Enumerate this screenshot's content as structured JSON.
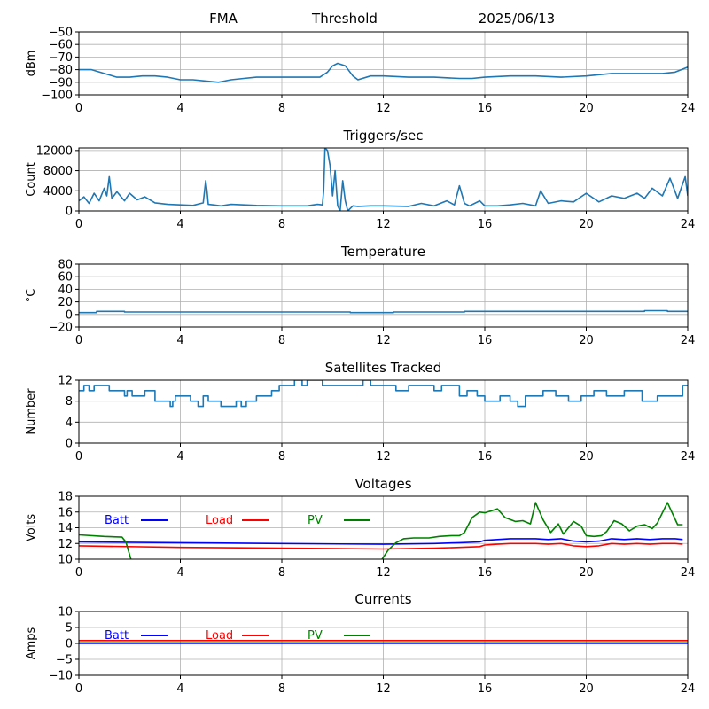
{
  "header": {
    "left": "FMA",
    "center": "Threshold",
    "right": "2025/06/13"
  },
  "colors": {
    "default": "#1f77b4",
    "batt": "#0000ff",
    "load": "#ff0000",
    "pv": "#008000"
  },
  "chart_data": [
    {
      "id": "signal",
      "type": "line",
      "title": "",
      "xlabel": "",
      "ylabel": "dBm",
      "xlim": [
        0,
        24
      ],
      "ylim": [
        -100,
        -50
      ],
      "xticks": [
        0,
        4,
        8,
        12,
        16,
        20,
        24
      ],
      "yticks": [
        -100,
        -90,
        -80,
        -70,
        -60,
        -50
      ],
      "ytick_labels": [
        "−100",
        "−90",
        "−80",
        "−70",
        "−60",
        "−50"
      ],
      "grid": true,
      "series": [
        {
          "color": "default",
          "x": [
            0,
            0.5,
            1,
            1.5,
            2,
            2.5,
            3,
            3.5,
            4,
            4.5,
            5,
            5.5,
            6,
            6.5,
            7,
            8,
            9,
            9.5,
            9.8,
            10,
            10.2,
            10.5,
            10.8,
            11,
            11.5,
            12,
            13,
            14,
            15,
            15.5,
            16,
            17,
            18,
            19,
            20,
            20.5,
            21,
            22,
            23,
            23.5,
            24
          ],
          "y": [
            -80,
            -80,
            -83,
            -86,
            -86,
            -85,
            -85,
            -86,
            -88,
            -88,
            -89,
            -90,
            -88,
            -87,
            -86,
            -86,
            -86,
            -86,
            -82,
            -77,
            -75,
            -77,
            -85,
            -88,
            -85,
            -85,
            -86,
            -86,
            -87,
            -87,
            -86,
            -85,
            -85,
            -86,
            -85,
            -84,
            -83,
            -83,
            -83,
            -82,
            -78
          ]
        }
      ]
    },
    {
      "id": "triggers",
      "type": "line",
      "title": "Triggers/sec",
      "xlabel": "",
      "ylabel": "Count",
      "xlim": [
        0,
        24
      ],
      "ylim": [
        0,
        12500
      ],
      "xticks": [
        0,
        4,
        8,
        12,
        16,
        20,
        24
      ],
      "yticks": [
        0,
        4000,
        8000,
        12000
      ],
      "ytick_labels": [
        "0",
        "4000",
        "8000",
        "12000"
      ],
      "grid": true,
      "series": [
        {
          "color": "default",
          "x": [
            0,
            0.2,
            0.4,
            0.6,
            0.8,
            1.0,
            1.1,
            1.2,
            1.3,
            1.5,
            1.8,
            2.0,
            2.3,
            2.6,
            3.0,
            3.5,
            4.0,
            4.5,
            4.9,
            5.0,
            5.05,
            5.1,
            5.3,
            5.6,
            6.0,
            7.0,
            8.0,
            9.0,
            9.4,
            9.6,
            9.65,
            9.7,
            9.8,
            9.9,
            10.0,
            10.1,
            10.2,
            10.3,
            10.4,
            10.5,
            10.6,
            10.8,
            11.0,
            11.5,
            12.0,
            13.0,
            13.5,
            14.0,
            14.5,
            14.8,
            15.0,
            15.2,
            15.4,
            15.8,
            16.0,
            16.5,
            17.0,
            17.5,
            18.0,
            18.2,
            18.5,
            19.0,
            19.5,
            20.0,
            20.5,
            21.0,
            21.5,
            22.0,
            22.3,
            22.6,
            23.0,
            23.3,
            23.6,
            23.9,
            24.0
          ],
          "y": [
            2000,
            2800,
            1500,
            3500,
            2000,
            4500,
            3000,
            6800,
            2500,
            3800,
            2000,
            3500,
            2200,
            2800,
            1600,
            1300,
            1200,
            1100,
            1600,
            6000,
            4000,
            1300,
            1200,
            1000,
            1300,
            1100,
            1000,
            1000,
            1300,
            1200,
            4000,
            12500,
            12000,
            9000,
            3000,
            8000,
            1000,
            0,
            6000,
            2000,
            0,
            1000,
            900,
            1000,
            1000,
            900,
            1500,
            1000,
            2000,
            1200,
            5000,
            1500,
            1000,
            2000,
            1000,
            1000,
            1200,
            1500,
            1000,
            4000,
            1500,
            2000,
            1800,
            3500,
            1800,
            3000,
            2500,
            3500,
            2500,
            4500,
            3000,
            6500,
            2500,
            6800,
            3000
          ]
        }
      ]
    },
    {
      "id": "temperature",
      "type": "line",
      "title": "Temperature",
      "xlabel": "",
      "ylabel": "°C",
      "xlim": [
        0,
        24
      ],
      "ylim": [
        -20,
        80
      ],
      "xticks": [
        0,
        4,
        8,
        12,
        16,
        20,
        24
      ],
      "yticks": [
        -20,
        0,
        20,
        40,
        60,
        80
      ],
      "ytick_labels": [
        "−20",
        "0",
        "20",
        "40",
        "60",
        "80"
      ],
      "grid": true,
      "series": [
        {
          "color": "default",
          "x": [
            0,
            0.7,
            0.7,
            1.8,
            1.8,
            10.7,
            10.7,
            12.4,
            12.4,
            15.2,
            15.2,
            22.3,
            22.3,
            23.2,
            23.2,
            24
          ],
          "y": [
            3,
            3,
            5,
            5,
            4,
            4,
            3,
            3,
            4,
            4,
            5,
            5,
            6,
            6,
            5,
            5
          ]
        }
      ]
    },
    {
      "id": "satellites",
      "type": "line",
      "title": "Satellites Tracked",
      "xlabel": "",
      "ylabel": "Number",
      "xlim": [
        0,
        24
      ],
      "ylim": [
        0,
        12
      ],
      "xticks": [
        0,
        4,
        8,
        12,
        16,
        20,
        24
      ],
      "yticks": [
        0,
        4,
        8,
        12
      ],
      "ytick_labels": [
        "0",
        "4",
        "8",
        "12"
      ],
      "grid": true,
      "series": [
        {
          "color": "default",
          "x": [
            0,
            0.2,
            0.2,
            0.4,
            0.4,
            0.6,
            0.6,
            1.2,
            1.2,
            1.8,
            1.8,
            1.9,
            1.9,
            2.1,
            2.1,
            2.6,
            2.6,
            3.0,
            3.0,
            3.6,
            3.6,
            3.7,
            3.7,
            3.8,
            3.8,
            4.4,
            4.4,
            4.7,
            4.7,
            4.9,
            4.9,
            5.1,
            5.1,
            5.6,
            5.6,
            6.2,
            6.2,
            6.4,
            6.4,
            6.6,
            6.6,
            7.0,
            7.0,
            7.6,
            7.6,
            7.9,
            7.9,
            8.5,
            8.5,
            8.8,
            8.8,
            9.0,
            9.0,
            9.6,
            9.6,
            11.2,
            11.2,
            11.5,
            11.5,
            12.5,
            12.5,
            13.0,
            13.0,
            14.0,
            14.0,
            14.3,
            14.3,
            15.0,
            15.0,
            15.3,
            15.3,
            15.7,
            15.7,
            16.0,
            16.0,
            16.6,
            16.6,
            17.0,
            17.0,
            17.3,
            17.3,
            17.6,
            17.6,
            18.3,
            18.3,
            18.8,
            18.8,
            19.3,
            19.3,
            19.8,
            19.8,
            20.3,
            20.3,
            20.8,
            20.8,
            21.5,
            21.5,
            22.2,
            22.2,
            22.8,
            22.8,
            23.8,
            23.8,
            24
          ],
          "y": [
            10,
            10,
            11,
            11,
            10,
            10,
            11,
            11,
            10,
            10,
            9,
            9,
            10,
            10,
            9,
            9,
            10,
            10,
            8,
            8,
            7,
            7,
            8,
            8,
            9,
            9,
            8,
            8,
            7,
            7,
            9,
            9,
            8,
            8,
            7,
            7,
            8,
            8,
            7,
            7,
            8,
            8,
            9,
            9,
            10,
            10,
            11,
            11,
            12,
            12,
            11,
            11,
            12,
            12,
            11,
            11,
            12,
            12,
            11,
            11,
            10,
            10,
            11,
            11,
            10,
            10,
            11,
            11,
            9,
            9,
            10,
            10,
            9,
            9,
            8,
            8,
            9,
            9,
            8,
            8,
            7,
            7,
            9,
            9,
            10,
            10,
            9,
            9,
            8,
            8,
            9,
            9,
            10,
            10,
            9,
            9,
            10,
            10,
            8,
            8,
            9,
            9,
            11,
            11
          ]
        }
      ]
    },
    {
      "id": "voltages",
      "type": "line",
      "title": "Voltages",
      "xlabel": "",
      "ylabel": "Volts",
      "xlim": [
        0,
        24
      ],
      "ylim": [
        10,
        18
      ],
      "xticks": [
        0,
        4,
        8,
        12,
        16,
        20,
        24
      ],
      "yticks": [
        10,
        12,
        14,
        16,
        18
      ],
      "ytick_labels": [
        "10",
        "12",
        "14",
        "16",
        "18"
      ],
      "grid": true,
      "legend": [
        {
          "label": "Batt",
          "color": "batt"
        },
        {
          "label": "Load",
          "color": "load"
        },
        {
          "label": "PV",
          "color": "pv"
        }
      ],
      "series": [
        {
          "name": "Batt",
          "color": "batt",
          "x": [
            0,
            4,
            8,
            12,
            14,
            15,
            15.8,
            16,
            16.5,
            17,
            18,
            18.5,
            19,
            19.5,
            20,
            20.5,
            21,
            21.5,
            22,
            22.5,
            23,
            23.5,
            23.8
          ],
          "y": [
            12.2,
            12.1,
            12.0,
            11.9,
            12.0,
            12.1,
            12.2,
            12.4,
            12.5,
            12.6,
            12.6,
            12.5,
            12.6,
            12.3,
            12.2,
            12.3,
            12.6,
            12.5,
            12.6,
            12.5,
            12.6,
            12.6,
            12.5
          ]
        },
        {
          "name": "Load",
          "color": "load",
          "x": [
            0,
            4,
            8,
            12,
            14,
            15,
            15.8,
            16,
            16.5,
            17,
            18,
            18.5,
            19,
            19.5,
            20,
            20.5,
            21,
            21.5,
            22,
            22.5,
            23,
            23.5,
            23.8
          ],
          "y": [
            11.7,
            11.5,
            11.4,
            11.3,
            11.4,
            11.5,
            11.6,
            11.8,
            11.9,
            12.0,
            12.0,
            11.9,
            12.0,
            11.7,
            11.6,
            11.7,
            12.0,
            11.9,
            12.0,
            11.9,
            12.0,
            12.0,
            11.9
          ]
        },
        {
          "name": "PV",
          "color": "pv",
          "x": [
            0,
            1,
            1.7,
            1.85,
            2.05
          ],
          "y": [
            13.1,
            12.9,
            12.8,
            12.2,
            10
          ]
        },
        {
          "name": "PV",
          "color": "pv",
          "x": [
            11.95,
            12.2,
            12.5,
            12.8,
            13.2,
            13.8,
            14.2,
            14.7,
            15.0,
            15.2,
            15.5,
            15.8,
            16.0,
            16.3,
            16.5,
            16.8,
            17.2,
            17.5,
            17.8,
            18.0,
            18.3,
            18.6,
            18.9,
            19.1,
            19.5,
            19.8,
            20.0,
            20.3,
            20.6,
            20.8,
            21.1,
            21.4,
            21.7,
            22.0,
            22.3,
            22.6,
            22.8,
            23.2,
            23.6,
            23.8
          ],
          "y": [
            10,
            11.2,
            12.1,
            12.6,
            12.7,
            12.7,
            12.9,
            13.0,
            13.0,
            13.4,
            15.3,
            16.0,
            15.9,
            16.2,
            16.4,
            15.3,
            14.8,
            14.9,
            14.5,
            17.2,
            15.0,
            13.4,
            14.5,
            13.2,
            14.8,
            14.2,
            13.0,
            12.9,
            13.0,
            13.5,
            14.9,
            14.5,
            13.6,
            14.2,
            14.4,
            13.9,
            14.6,
            17.2,
            14.4,
            14.4
          ]
        }
      ]
    },
    {
      "id": "currents",
      "type": "line",
      "title": "Currents",
      "xlabel": "",
      "ylabel": "Amps",
      "xlim": [
        0,
        24
      ],
      "ylim": [
        -10,
        10
      ],
      "xticks": [
        0,
        4,
        8,
        12,
        16,
        20,
        24
      ],
      "yticks": [
        -10,
        -5,
        0,
        5,
        10
      ],
      "ytick_labels": [
        "−10",
        "−5",
        "0",
        "5",
        "10"
      ],
      "grid": true,
      "legend": [
        {
          "label": "Batt",
          "color": "batt"
        },
        {
          "label": "Load",
          "color": "load"
        },
        {
          "label": "PV",
          "color": "pv"
        }
      ],
      "series": [
        {
          "name": "Load",
          "color": "load",
          "x": [
            0,
            24
          ],
          "y": [
            0.9,
            0.9
          ]
        },
        {
          "name": "PV",
          "color": "pv",
          "x": [
            0,
            24
          ],
          "y": [
            0.2,
            0.2
          ]
        },
        {
          "name": "Batt",
          "color": "batt",
          "x": [
            0,
            24
          ],
          "y": [
            0.0,
            0.0
          ]
        }
      ]
    }
  ]
}
